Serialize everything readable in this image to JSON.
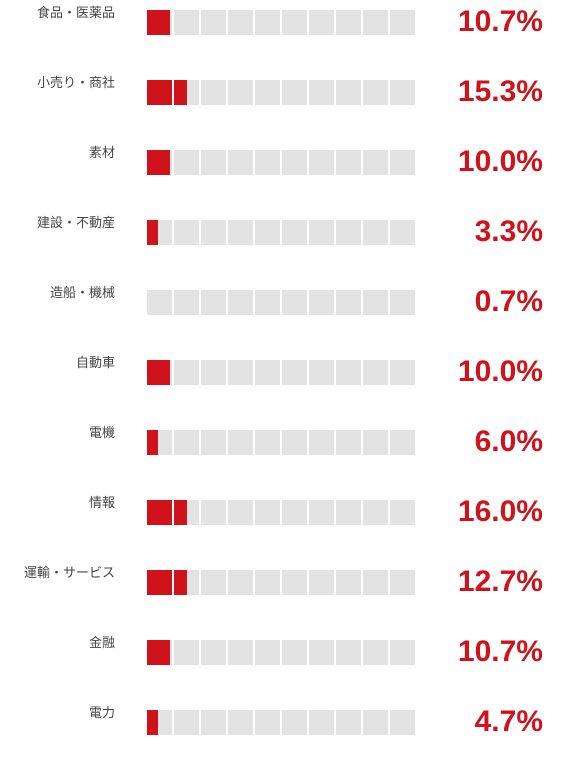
{
  "colors": {
    "fill": "#d0121b",
    "track": "#e3e3e3",
    "value_text": "#d0121b",
    "label_text": "#444444"
  },
  "chart_data": {
    "type": "bar",
    "categories": [
      "食品・医薬品",
      "小売り・商社",
      "素材",
      "建設・不動産",
      "造船・機械",
      "自動車",
      "電機",
      "情報",
      "運輸・サービス",
      "金融",
      "電力"
    ],
    "values": [
      10.7,
      15.3,
      10.0,
      3.3,
      0.7,
      10.0,
      6.0,
      16.0,
      12.7,
      10.7,
      4.7
    ],
    "value_labels": [
      "10.7%",
      "15.3%",
      "10.0%",
      "3.3%",
      "0.7%",
      "10.0%",
      "6.0%",
      "16.0%",
      "12.7%",
      "10.7%",
      "4.7%"
    ],
    "segments": 10,
    "filled_segments": [
      0.9,
      1.5,
      0.9,
      0.45,
      0,
      0.9,
      0.45,
      1.5,
      1.5,
      0.9,
      0.45
    ]
  }
}
